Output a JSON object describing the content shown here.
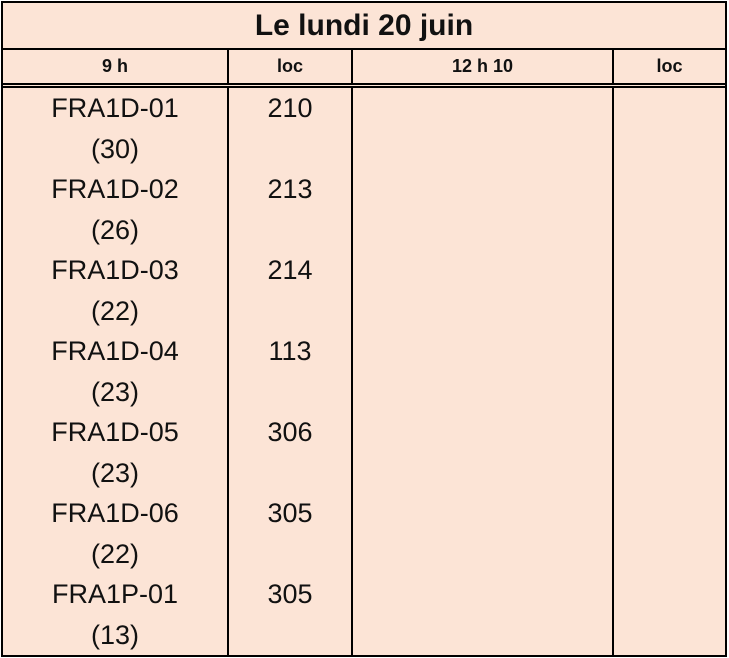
{
  "title": "Le lundi 20 juin",
  "headers": [
    "9 h",
    "loc",
    "12 h 10",
    "loc"
  ],
  "rows": [
    {
      "group": "FRA1D-01",
      "count": "(30)",
      "loc": "210"
    },
    {
      "group": "FRA1D-02",
      "count": "(26)",
      "loc": "213"
    },
    {
      "group": "FRA1D-03",
      "count": "(22)",
      "loc": "214"
    },
    {
      "group": "FRA1D-04",
      "count": "(23)",
      "loc": "113"
    },
    {
      "group": "FRA1D-05",
      "count": "(23)",
      "loc": "306"
    },
    {
      "group": "FRA1D-06",
      "count": "(22)",
      "loc": "305"
    },
    {
      "group": "FRA1P-01",
      "count": "(13)",
      "loc": "305"
    }
  ],
  "colors": {
    "background": "#FCE4D6",
    "border": "#000000",
    "text": "#111111"
  }
}
